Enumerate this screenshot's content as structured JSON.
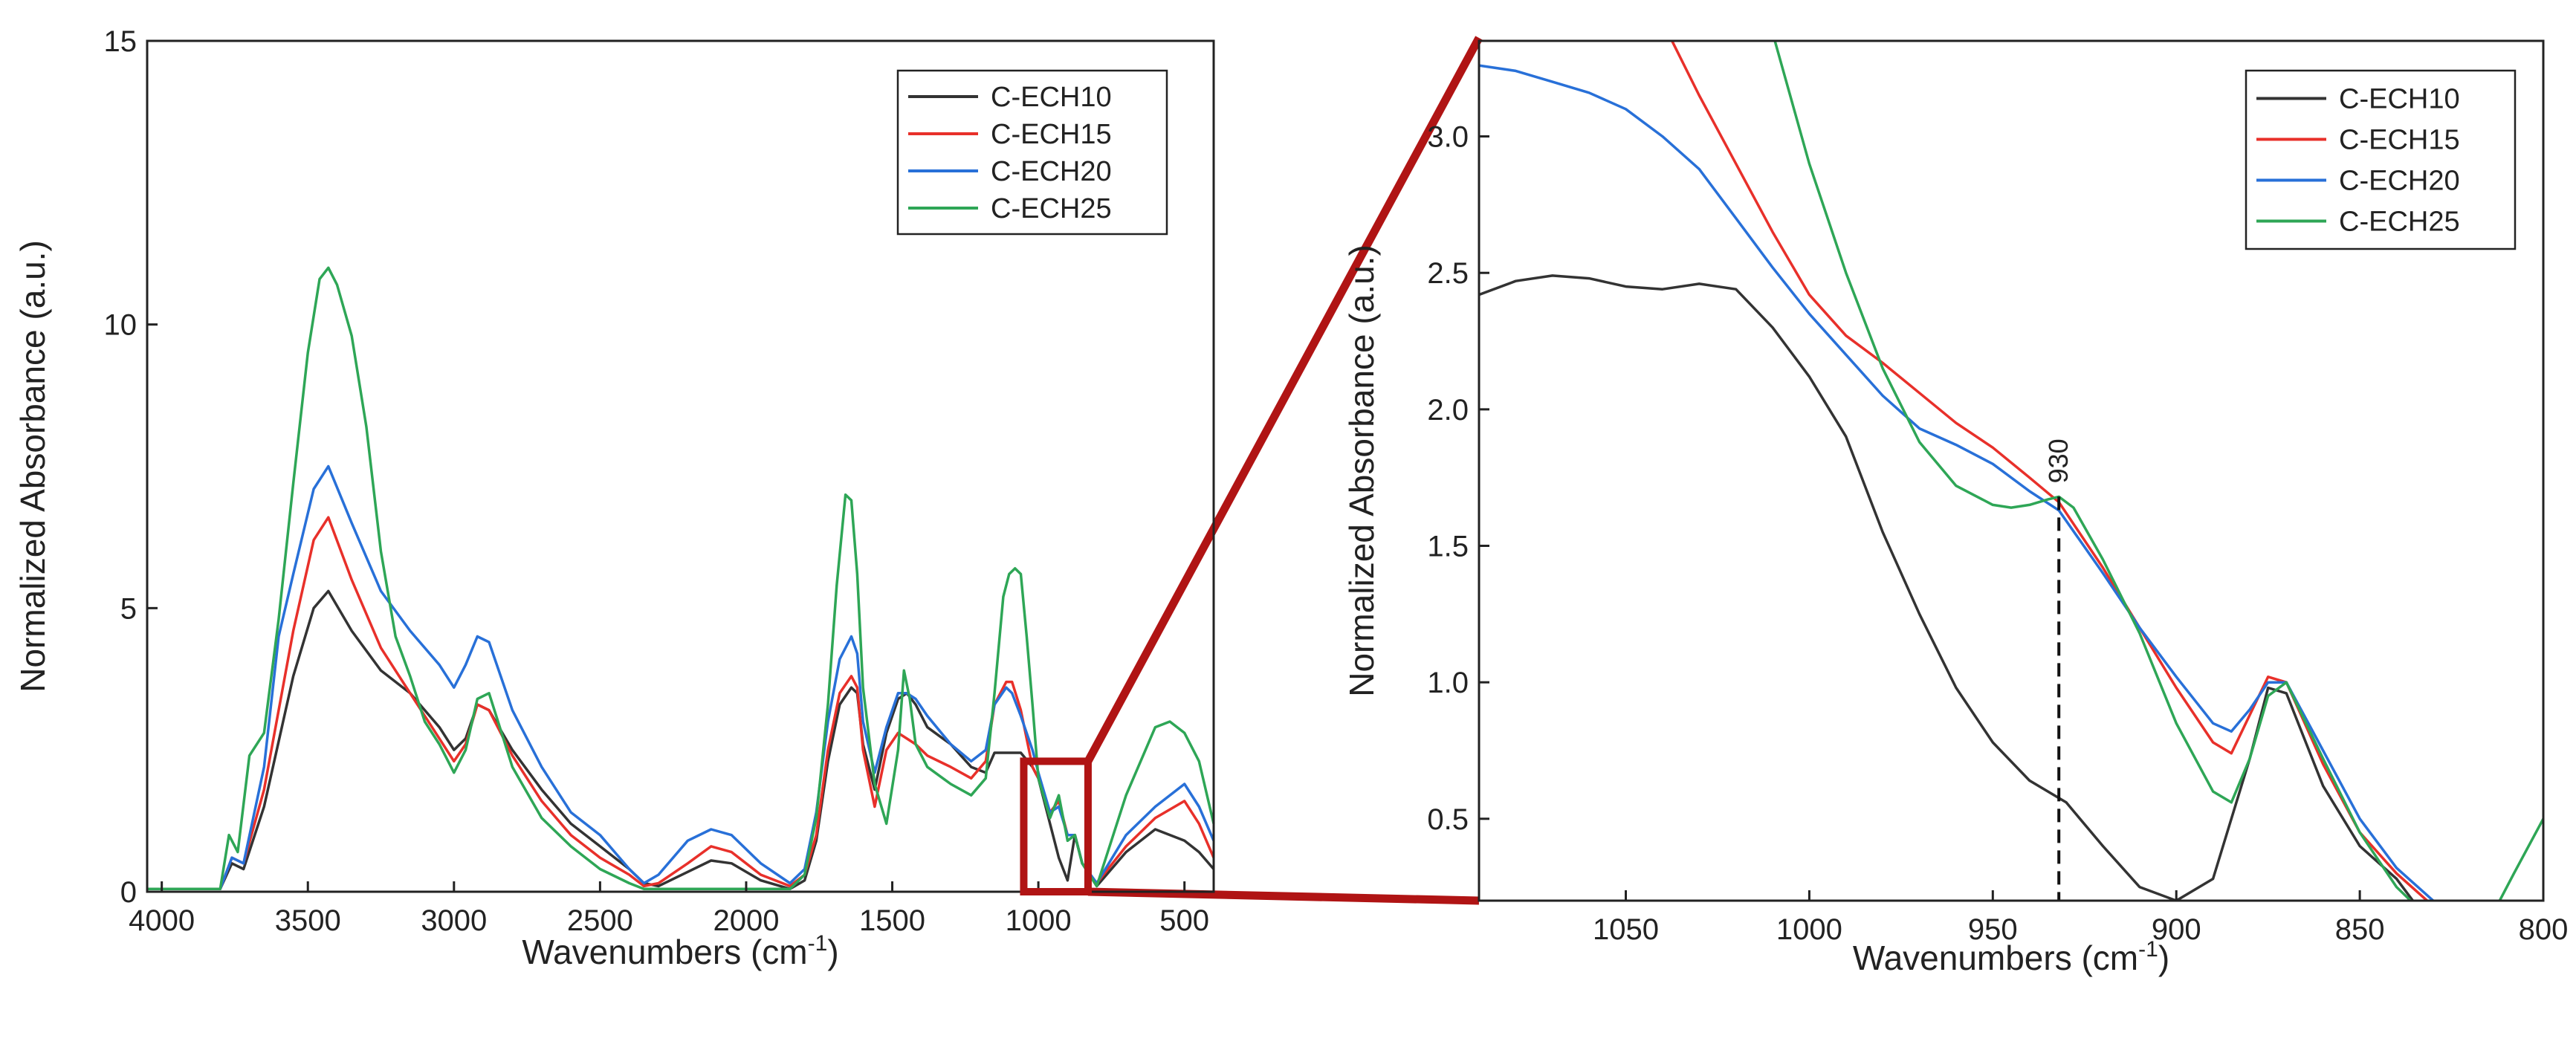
{
  "chart_data": [
    {
      "type": "line",
      "panel": "full-spectrum",
      "title": "",
      "xlabel_main": "Wavenumbers (cm",
      "xlabel_sup": "-1",
      "xlabel_close": ")",
      "ylabel": "Normalized Absorbance (a.u.)",
      "xlim": [
        4050,
        400
      ],
      "ylim": [
        0,
        15
      ],
      "x_ticks": [
        4000,
        3500,
        3000,
        2500,
        2000,
        1500,
        1000,
        500
      ],
      "y_ticks": [
        0,
        5,
        10,
        15
      ],
      "legend": {
        "position": "top-right",
        "entries": [
          "C-ECH10",
          "C-ECH15",
          "C-ECH20",
          "C-ECH25"
        ]
      },
      "zoom_region": {
        "x": [
          1050,
          830
        ],
        "y": [
          0,
          2.3
        ]
      },
      "series": [
        {
          "name": "C-ECH10",
          "color": "#333333",
          "x": [
            4050,
            3800,
            3760,
            3720,
            3650,
            3550,
            3480,
            3430,
            3350,
            3250,
            3150,
            3050,
            3000,
            2960,
            2920,
            2880,
            2800,
            2700,
            2600,
            2500,
            2400,
            2350,
            2300,
            2200,
            2120,
            2050,
            1950,
            1850,
            1800,
            1760,
            1720,
            1680,
            1640,
            1620,
            1600,
            1560,
            1520,
            1480,
            1450,
            1420,
            1380,
            1300,
            1230,
            1180,
            1150,
            1100,
            1060,
            1020,
            1000,
            960,
            930,
            900,
            875,
            850,
            800,
            700,
            600,
            500,
            450,
            400
          ],
          "y": [
            0.05,
            0.05,
            0.5,
            0.4,
            1.5,
            3.8,
            5.0,
            5.3,
            4.6,
            3.9,
            3.5,
            2.9,
            2.5,
            2.7,
            3.3,
            3.2,
            2.5,
            1.8,
            1.2,
            0.8,
            0.4,
            0.15,
            0.1,
            0.35,
            0.55,
            0.5,
            0.2,
            0.05,
            0.2,
            0.9,
            2.3,
            3.3,
            3.6,
            3.5,
            2.6,
            1.8,
            2.8,
            3.4,
            3.5,
            3.3,
            2.9,
            2.6,
            2.2,
            2.1,
            2.45,
            2.45,
            2.45,
            2.2,
            2.0,
            1.2,
            0.6,
            0.2,
            1.0,
            0.5,
            0.1,
            0.7,
            1.1,
            0.9,
            0.7,
            0.4
          ]
        },
        {
          "name": "C-ECH15",
          "color": "#e8302a",
          "x": [
            4050,
            3800,
            3760,
            3720,
            3650,
            3550,
            3480,
            3430,
            3350,
            3250,
            3150,
            3050,
            3000,
            2960,
            2920,
            2880,
            2800,
            2700,
            2600,
            2500,
            2400,
            2350,
            2300,
            2200,
            2120,
            2050,
            1950,
            1850,
            1800,
            1760,
            1720,
            1680,
            1640,
            1620,
            1600,
            1560,
            1520,
            1480,
            1450,
            1420,
            1380,
            1300,
            1230,
            1180,
            1150,
            1110,
            1090,
            1060,
            1020,
            1000,
            960,
            930,
            900,
            875,
            850,
            800,
            700,
            600,
            500,
            450,
            400
          ],
          "y": [
            0.05,
            0.05,
            0.6,
            0.5,
            1.8,
            4.6,
            6.2,
            6.6,
            5.5,
            4.3,
            3.5,
            2.7,
            2.3,
            2.6,
            3.3,
            3.2,
            2.4,
            1.6,
            1.0,
            0.6,
            0.3,
            0.1,
            0.15,
            0.5,
            0.8,
            0.7,
            0.3,
            0.1,
            0.3,
            1.0,
            2.5,
            3.5,
            3.8,
            3.6,
            2.5,
            1.5,
            2.5,
            2.8,
            2.7,
            2.6,
            2.4,
            2.2,
            2.0,
            2.3,
            3.3,
            3.7,
            3.7,
            3.2,
            2.2,
            2.0,
            1.4,
            1.6,
            1.0,
            1.0,
            0.5,
            0.15,
            0.8,
            1.3,
            1.6,
            1.2,
            0.6
          ]
        },
        {
          "name": "C-ECH20",
          "color": "#2870d8",
          "x": [
            4050,
            3800,
            3760,
            3720,
            3650,
            3600,
            3550,
            3480,
            3430,
            3350,
            3250,
            3150,
            3050,
            3000,
            2960,
            2920,
            2880,
            2800,
            2700,
            2600,
            2500,
            2400,
            2350,
            2300,
            2200,
            2120,
            2050,
            1950,
            1850,
            1800,
            1760,
            1720,
            1680,
            1640,
            1620,
            1600,
            1560,
            1520,
            1480,
            1450,
            1420,
            1380,
            1300,
            1230,
            1180,
            1150,
            1110,
            1090,
            1060,
            1020,
            1000,
            960,
            930,
            900,
            875,
            850,
            800,
            700,
            600,
            500,
            450,
            400
          ],
          "y": [
            0.05,
            0.05,
            0.6,
            0.5,
            2.2,
            4.5,
            5.6,
            7.1,
            7.5,
            6.5,
            5.3,
            4.6,
            4.0,
            3.6,
            4.0,
            4.5,
            4.4,
            3.2,
            2.2,
            1.4,
            1.0,
            0.4,
            0.15,
            0.3,
            0.9,
            1.1,
            1.0,
            0.5,
            0.15,
            0.4,
            1.4,
            3.0,
            4.1,
            4.5,
            4.2,
            3.0,
            2.1,
            2.9,
            3.5,
            3.5,
            3.4,
            3.1,
            2.6,
            2.3,
            2.5,
            3.3,
            3.6,
            3.5,
            3.1,
            2.5,
            2.1,
            1.4,
            1.5,
            1.0,
            1.0,
            0.5,
            0.15,
            1.0,
            1.5,
            1.9,
            1.5,
            0.9
          ]
        },
        {
          "name": "C-ECH25",
          "color": "#2ea656",
          "x": [
            4050,
            3800,
            3770,
            3740,
            3700,
            3650,
            3600,
            3550,
            3500,
            3460,
            3430,
            3400,
            3350,
            3300,
            3250,
            3200,
            3150,
            3100,
            3050,
            3000,
            2960,
            2920,
            2880,
            2800,
            2700,
            2600,
            2500,
            2400,
            2350,
            2300,
            2200,
            2100,
            2000,
            1900,
            1850,
            1800,
            1760,
            1720,
            1690,
            1660,
            1640,
            1620,
            1600,
            1560,
            1520,
            1480,
            1460,
            1440,
            1420,
            1380,
            1300,
            1230,
            1180,
            1150,
            1120,
            1100,
            1080,
            1060,
            1040,
            1020,
            1000,
            960,
            930,
            900,
            875,
            850,
            800,
            700,
            600,
            550,
            500,
            450,
            400
          ],
          "y": [
            0.05,
            0.05,
            1.0,
            0.7,
            2.4,
            2.8,
            4.8,
            7.2,
            9.5,
            10.8,
            11.0,
            10.7,
            9.8,
            8.2,
            6.0,
            4.5,
            3.8,
            3.0,
            2.6,
            2.1,
            2.5,
            3.4,
            3.5,
            2.2,
            1.3,
            0.8,
            0.4,
            0.15,
            0.05,
            0.05,
            0.05,
            0.05,
            0.05,
            0.05,
            0.05,
            0.3,
            1.3,
            3.3,
            5.4,
            7.0,
            6.9,
            5.6,
            3.6,
            1.9,
            1.2,
            2.5,
            3.9,
            3.4,
            2.6,
            2.2,
            1.9,
            1.7,
            2.0,
            3.5,
            5.2,
            5.6,
            5.7,
            5.6,
            4.5,
            3.3,
            2.0,
            1.3,
            1.7,
            0.9,
            1.0,
            0.5,
            0.1,
            1.7,
            2.9,
            3.0,
            2.8,
            2.3,
            1.2
          ]
        }
      ]
    },
    {
      "type": "line",
      "panel": "zoomed-inset",
      "title": "",
      "xlabel_main": "Wavenumbers (cm",
      "xlabel_sup": "-1",
      "xlabel_close": ")",
      "ylabel": "Normalized Absorbance (a.u.)",
      "xlim": [
        1090,
        800
      ],
      "ylim": [
        0.2,
        3.35
      ],
      "x_ticks": [
        1050,
        1000,
        950,
        900,
        850,
        800
      ],
      "y_ticks": [
        0.5,
        1.0,
        1.5,
        2.0,
        2.5,
        3.0
      ],
      "y_tick_labels": [
        "0.5",
        "1.0",
        "1.5",
        "2.0",
        "2.5",
        "3.0"
      ],
      "legend": {
        "position": "top-right",
        "entries": [
          "C-ECH10",
          "C-ECH15",
          "C-ECH20",
          "C-ECH25"
        ]
      },
      "annotation": {
        "label": "930",
        "x": 932,
        "y_range": [
          0.2,
          1.68
        ],
        "style": "dashed-vertical-line"
      },
      "series": [
        {
          "name": "C-ECH10",
          "color": "#333333",
          "x": [
            1090,
            1080,
            1070,
            1060,
            1050,
            1040,
            1030,
            1020,
            1010,
            1000,
            990,
            980,
            970,
            960,
            950,
            940,
            930,
            920,
            910,
            900,
            890,
            880,
            875,
            870,
            860,
            850,
            840,
            830
          ],
          "y": [
            2.42,
            2.47,
            2.49,
            2.48,
            2.45,
            2.44,
            2.46,
            2.44,
            2.3,
            2.12,
            1.9,
            1.55,
            1.25,
            0.98,
            0.78,
            0.64,
            0.56,
            0.4,
            0.25,
            0.2,
            0.28,
            0.72,
            0.98,
            0.96,
            0.62,
            0.4,
            0.28,
            0.1
          ]
        },
        {
          "name": "C-ECH15",
          "color": "#e8302a",
          "x": [
            1040,
            1030,
            1020,
            1010,
            1000,
            990,
            980,
            970,
            960,
            950,
            940,
            932,
            920,
            910,
            900,
            890,
            885,
            880,
            875,
            870,
            860,
            850,
            840,
            830,
            825
          ],
          "y": [
            3.42,
            3.15,
            2.9,
            2.65,
            2.42,
            2.27,
            2.17,
            2.06,
            1.95,
            1.86,
            1.75,
            1.66,
            1.42,
            1.2,
            0.98,
            0.78,
            0.74,
            0.88,
            1.02,
            1.0,
            0.7,
            0.45,
            0.3,
            0.18,
            0.1
          ]
        },
        {
          "name": "C-ECH20",
          "color": "#2870d8",
          "x": [
            1090,
            1080,
            1070,
            1060,
            1050,
            1040,
            1030,
            1020,
            1010,
            1000,
            990,
            980,
            970,
            960,
            950,
            940,
            932,
            920,
            910,
            900,
            890,
            885,
            880,
            875,
            870,
            860,
            850,
            840,
            830,
            825
          ],
          "y": [
            3.26,
            3.24,
            3.2,
            3.16,
            3.1,
            3.0,
            2.88,
            2.7,
            2.52,
            2.35,
            2.2,
            2.05,
            1.93,
            1.87,
            1.8,
            1.7,
            1.63,
            1.4,
            1.2,
            1.02,
            0.85,
            0.82,
            0.9,
            1.0,
            1.0,
            0.75,
            0.5,
            0.32,
            0.2,
            0.1
          ]
        },
        {
          "name": "C-ECH25",
          "color": "#2ea656",
          "x": [
            1010,
            1000,
            990,
            980,
            970,
            960,
            950,
            945,
            940,
            935,
            932,
            928,
            920,
            910,
            900,
            890,
            885,
            880,
            875,
            870,
            860,
            850,
            840,
            830,
            820,
            815,
            808,
            800
          ],
          "y": [
            3.38,
            2.9,
            2.5,
            2.15,
            1.88,
            1.72,
            1.65,
            1.64,
            1.65,
            1.67,
            1.68,
            1.64,
            1.45,
            1.18,
            0.85,
            0.6,
            0.56,
            0.72,
            0.95,
            1.0,
            0.72,
            0.45,
            0.25,
            0.12,
            0.1,
            0.12,
            0.3,
            0.5
          ]
        }
      ]
    }
  ]
}
